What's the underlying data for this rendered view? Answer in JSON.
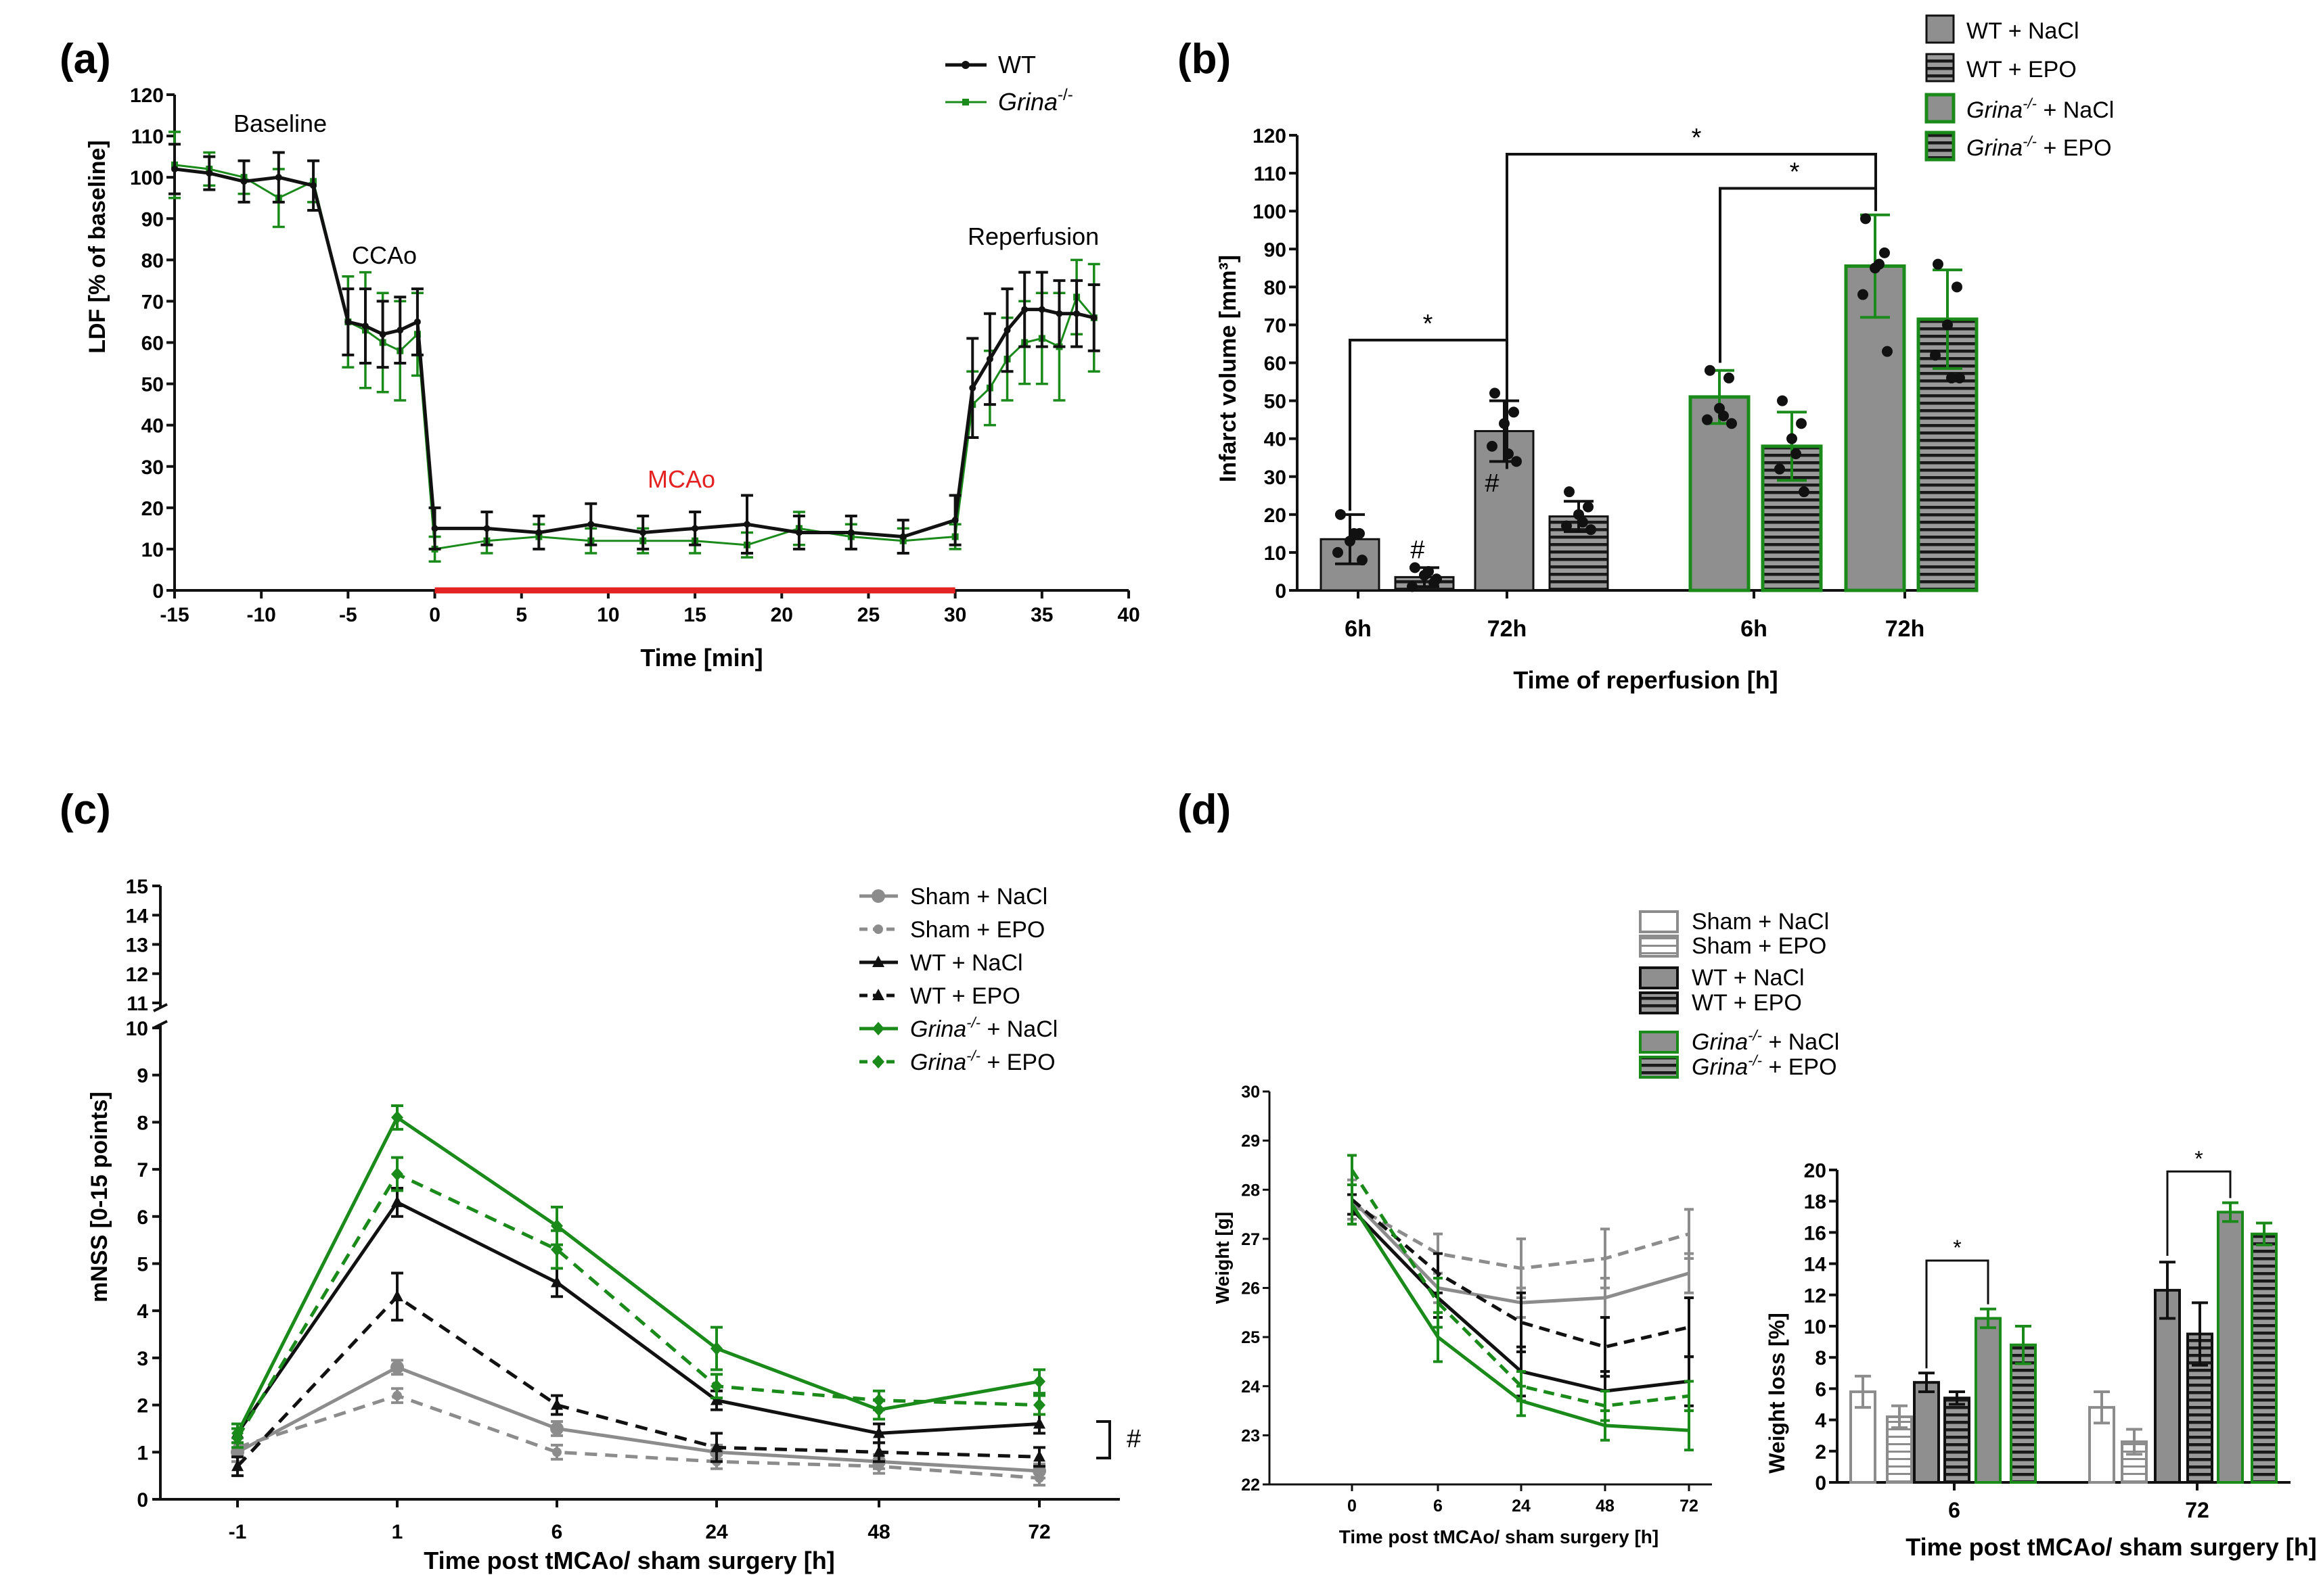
{
  "colors": {
    "wt": "#111111",
    "grina": "#1a8a1a",
    "sham": "#8c8c8c",
    "bar_fill": "#8f8f8f",
    "red": "#e52222"
  },
  "chart_data": [
    {
      "id": "a",
      "panel_label": "(a)",
      "type": "line",
      "xlabel": "Time [min]",
      "ylabel": "LDF [% of baseline]",
      "xlim": [
        -15,
        40
      ],
      "ylim": [
        0,
        120
      ],
      "xticks": [
        -15,
        -10,
        -5,
        0,
        5,
        10,
        15,
        20,
        25,
        30,
        35,
        40
      ],
      "yticks": [
        0,
        10,
        20,
        30,
        40,
        50,
        60,
        70,
        80,
        90,
        100,
        110,
        120
      ],
      "annotations": {
        "baseline": "Baseline",
        "ccao": "CCAo",
        "mcao": "MCAo",
        "reperfusion": "Reperfusion"
      },
      "occlusion_interval": [
        0,
        30
      ],
      "series": [
        {
          "name": "WT",
          "legend_label": "WT",
          "color_key": "wt",
          "x": [
            -15,
            -13,
            -11,
            -9,
            -7,
            -5,
            -4,
            -3,
            -2,
            -1,
            0,
            3,
            6,
            9,
            12,
            15,
            18,
            21,
            24,
            27,
            30,
            31,
            32,
            33,
            34,
            35,
            36,
            37,
            38
          ],
          "y": [
            102,
            101,
            99,
            100,
            98,
            65,
            64,
            62,
            63,
            65,
            15,
            15,
            14,
            16,
            14,
            15,
            16,
            14,
            14,
            13,
            17,
            49,
            56,
            63,
            68,
            68,
            67,
            67,
            66
          ],
          "err": [
            6,
            4,
            5,
            6,
            6,
            8,
            9,
            8,
            8,
            8,
            5,
            4,
            4,
            5,
            4,
            4,
            7,
            4,
            4,
            4,
            6,
            12,
            11,
            10,
            9,
            9,
            8,
            8,
            8
          ]
        },
        {
          "name": "Grina-/-",
          "legend_label": "Grina",
          "legend_sup": "-/-",
          "color_key": "grina",
          "x": [
            -15,
            -13,
            -11,
            -9,
            -7,
            -5,
            -4,
            -3,
            -2,
            -1,
            0,
            3,
            6,
            9,
            12,
            15,
            18,
            21,
            24,
            27,
            30,
            31,
            32,
            33,
            34,
            35,
            36,
            37,
            38
          ],
          "y": [
            103,
            102,
            100,
            95,
            99,
            65,
            63,
            60,
            58,
            62,
            10,
            12,
            13,
            12,
            12,
            12,
            11,
            15,
            13,
            12,
            13,
            45,
            49,
            56,
            60,
            61,
            59,
            71,
            66
          ],
          "err": [
            8,
            4,
            4,
            7,
            5,
            11,
            14,
            12,
            12,
            10,
            3,
            3,
            3,
            3,
            3,
            3,
            3,
            4,
            3,
            3,
            3,
            8,
            9,
            10,
            10,
            11,
            13,
            9,
            13
          ]
        }
      ]
    },
    {
      "id": "b",
      "panel_label": "(b)",
      "type": "bar",
      "xlabel": "Time of reperfusion [h]",
      "ylabel": "Infarct volume [mm³]",
      "ylim": [
        0,
        120
      ],
      "yticks": [
        0,
        10,
        20,
        30,
        40,
        50,
        60,
        70,
        80,
        90,
        100,
        110,
        120
      ],
      "group_labels": [
        "6h",
        "72h",
        "6h",
        "72h"
      ],
      "legend": [
        {
          "label": "WT + NaCl",
          "italic": "",
          "sup": ""
        },
        {
          "label": "WT + EPO",
          "italic": "",
          "sup": ""
        },
        {
          "label": " + NaCl",
          "italic": "Grina",
          "sup": "-/-"
        },
        {
          "label": " + EPO",
          "italic": "Grina",
          "sup": "-/-"
        }
      ],
      "bars": [
        {
          "group": "6h",
          "series": "WT + NaCl",
          "value": 13.5,
          "err": 6.5,
          "points": [
            20,
            15,
            13,
            10,
            8,
            15
          ]
        },
        {
          "group": "6h",
          "series": "WT + EPO",
          "value": 3.5,
          "err": 2.5,
          "points": [
            6,
            2,
            4,
            1,
            3,
            5
          ]
        },
        {
          "group": "72h",
          "series": "WT + NaCl",
          "value": 42,
          "err": 8,
          "points": [
            52,
            47,
            44,
            38,
            34,
            36
          ]
        },
        {
          "group": "72h",
          "series": "WT + EPO",
          "value": 19.5,
          "err": 4,
          "points": [
            26,
            22,
            20,
            17,
            16,
            18
          ]
        },
        {
          "group": "6h",
          "series": "Grina-/- + NaCl",
          "value": 51,
          "err": 7,
          "points": [
            58,
            56,
            48,
            45,
            44,
            46
          ]
        },
        {
          "group": "6h",
          "series": "Grina-/- + EPO",
          "value": 38,
          "err": 9,
          "points": [
            50,
            44,
            40,
            32,
            26,
            36
          ]
        },
        {
          "group": "72h",
          "series": "Grina-/- + NaCl",
          "value": 85.5,
          "err": 13.5,
          "points": [
            98,
            89,
            85,
            78,
            63,
            86
          ]
        },
        {
          "group": "72h",
          "series": "Grina-/- + EPO",
          "value": 71.5,
          "err": 13,
          "points": [
            86,
            80,
            70,
            62,
            56,
            56
          ]
        }
      ],
      "annotations": {
        "hash": "#",
        "star": "*"
      }
    },
    {
      "id": "c",
      "panel_label": "(c)",
      "type": "line",
      "xlabel": "Time post tMCAo/ sham surgery  [h]",
      "ylabel": "mNSS [0-15 points]",
      "categories": [
        "-1",
        "1",
        "6",
        "24",
        "48",
        "72"
      ],
      "ylim": [
        0,
        15
      ],
      "yticks_lower": [
        0,
        1,
        2,
        3,
        4,
        5,
        6,
        7,
        8,
        9,
        10
      ],
      "yticks_upper": [
        11,
        12,
        13,
        14,
        15
      ],
      "bracket_label": "#",
      "series": [
        {
          "name": "Sham + NaCl",
          "italic": "",
          "sup": "",
          "color_key": "sham",
          "dashed": false,
          "marker": "circle",
          "values": [
            1.0,
            2.8,
            1.5,
            1.0,
            0.8,
            0.6
          ],
          "err": [
            0.2,
            0.15,
            0.15,
            0.15,
            0.15,
            0.15
          ]
        },
        {
          "name": "Sham + EPO",
          "italic": "",
          "sup": "",
          "color_key": "sham",
          "dashed": true,
          "marker": "dot",
          "values": [
            1.1,
            2.2,
            1.0,
            0.8,
            0.7,
            0.45
          ],
          "err": [
            0.2,
            0.15,
            0.15,
            0.15,
            0.15,
            0.15
          ]
        },
        {
          "name": "WT + NaCl",
          "italic": "",
          "sup": "",
          "color_key": "wt",
          "dashed": false,
          "marker": "triangle",
          "values": [
            1.4,
            6.3,
            4.6,
            2.1,
            1.4,
            1.6
          ],
          "err": [
            0.2,
            0.3,
            0.3,
            0.2,
            0.2,
            0.2
          ]
        },
        {
          "name": "WT + EPO",
          "italic": "",
          "sup": "",
          "color_key": "wt",
          "dashed": true,
          "marker": "triangle",
          "values": [
            0.7,
            4.3,
            2.0,
            1.1,
            1.0,
            0.9
          ],
          "err": [
            0.2,
            0.5,
            0.2,
            0.3,
            0.2,
            0.2
          ]
        },
        {
          "name": " + NaCl",
          "italic": "Grina",
          "sup": "-/-",
          "color_key": "grina",
          "dashed": false,
          "marker": "diamond",
          "values": [
            1.4,
            8.1,
            5.8,
            3.2,
            1.9,
            2.5
          ],
          "err": [
            0.2,
            0.25,
            0.4,
            0.45,
            0.2,
            0.25
          ]
        },
        {
          "name": " + EPO",
          "italic": "Grina",
          "sup": "-/-",
          "color_key": "grina",
          "dashed": true,
          "marker": "diamond",
          "values": [
            1.3,
            6.9,
            5.3,
            2.4,
            2.1,
            2.0
          ],
          "err": [
            0.2,
            0.35,
            0.4,
            0.25,
            0.2,
            0.2
          ]
        }
      ]
    },
    {
      "id": "d1",
      "panel_label": "(d)",
      "type": "line",
      "xlabel": "Time post tMCAo/ sham surgery [h]",
      "ylabel": "Weight [g]",
      "categories": [
        "0",
        "6",
        "24",
        "48",
        "72"
      ],
      "ylim": [
        22,
        30
      ],
      "yticks": [
        22,
        23,
        24,
        25,
        26,
        27,
        28,
        29,
        30
      ],
      "series": [
        {
          "name": "Sham + NaCl",
          "color_key": "sham",
          "dashed": false,
          "values": [
            27.8,
            26.0,
            25.7,
            25.8,
            26.3
          ],
          "err": [
            0.4,
            0.3,
            0.3,
            0.4,
            0.4
          ]
        },
        {
          "name": "Sham + EPO",
          "color_key": "sham",
          "dashed": true,
          "values": [
            27.7,
            26.7,
            26.4,
            26.6,
            27.1
          ],
          "err": [
            0.4,
            0.4,
            0.6,
            0.6,
            0.5
          ]
        },
        {
          "name": "WT + NaCl",
          "color_key": "wt",
          "dashed": false,
          "values": [
            27.6,
            25.8,
            24.3,
            23.9,
            24.1
          ],
          "err": [
            0.3,
            0.4,
            0.5,
            0.4,
            0.5
          ]
        },
        {
          "name": "WT + EPO",
          "color_key": "wt",
          "dashed": true,
          "values": [
            27.8,
            26.3,
            25.3,
            24.8,
            25.2
          ],
          "err": [
            0.3,
            0.4,
            0.6,
            0.6,
            0.6
          ]
        },
        {
          "name": "Grina-/- + NaCl",
          "color_key": "grina",
          "dashed": false,
          "values": [
            27.7,
            25.0,
            23.7,
            23.2,
            23.1
          ],
          "err": [
            0.4,
            0.5,
            0.3,
            0.3,
            0.4
          ]
        },
        {
          "name": "Grina-/- + EPO",
          "color_key": "grina",
          "dashed": true,
          "values": [
            28.4,
            25.7,
            24.0,
            23.6,
            23.8
          ],
          "err": [
            0.3,
            0.5,
            0.3,
            0.3,
            0.3
          ]
        }
      ]
    },
    {
      "id": "d2",
      "type": "bar",
      "xlabel": "Time post tMCAo/ sham surgery [h]",
      "ylabel": "Weight loss [%]",
      "group_labels": [
        "6",
        "72"
      ],
      "ylim": [
        0,
        20
      ],
      "yticks": [
        0,
        2,
        4,
        6,
        8,
        10,
        12,
        14,
        16,
        18,
        20
      ],
      "legend": [
        {
          "label": "Sham + NaCl",
          "italic": "",
          "sup": ""
        },
        {
          "label": "Sham + EPO",
          "italic": "",
          "sup": ""
        },
        {
          "label": "WT + NaCl",
          "italic": "",
          "sup": ""
        },
        {
          "label": "WT + EPO",
          "italic": "",
          "sup": ""
        },
        {
          "label": " + NaCl",
          "italic": "Grina",
          "sup": "-/-"
        },
        {
          "label": " + EPO",
          "italic": "Grina",
          "sup": "-/-"
        }
      ],
      "bars": [
        {
          "group": "6",
          "series": "Sham + NaCl",
          "value": 5.8,
          "err": 1.0
        },
        {
          "group": "6",
          "series": "Sham + EPO",
          "value": 4.2,
          "err": 0.7
        },
        {
          "group": "6",
          "series": "WT + NaCl",
          "value": 6.4,
          "err": 0.6
        },
        {
          "group": "6",
          "series": "WT + EPO",
          "value": 5.4,
          "err": 0.4
        },
        {
          "group": "6",
          "series": "Grina-/- + NaCl",
          "value": 10.5,
          "err": 0.6
        },
        {
          "group": "6",
          "series": "Grina-/- + EPO",
          "value": 8.8,
          "err": 1.2
        },
        {
          "group": "72",
          "series": "Sham + NaCl",
          "value": 4.8,
          "err": 1.0
        },
        {
          "group": "72",
          "series": "Sham + EPO",
          "value": 2.6,
          "err": 0.8
        },
        {
          "group": "72",
          "series": "WT + NaCl",
          "value": 12.3,
          "err": 1.8
        },
        {
          "group": "72",
          "series": "WT + EPO",
          "value": 9.5,
          "err": 2.0
        },
        {
          "group": "72",
          "series": "Grina-/- + NaCl",
          "value": 17.3,
          "err": 0.6
        },
        {
          "group": "72",
          "series": "Grina-/- + EPO",
          "value": 15.9,
          "err": 0.7
        }
      ],
      "star": "*"
    }
  ]
}
